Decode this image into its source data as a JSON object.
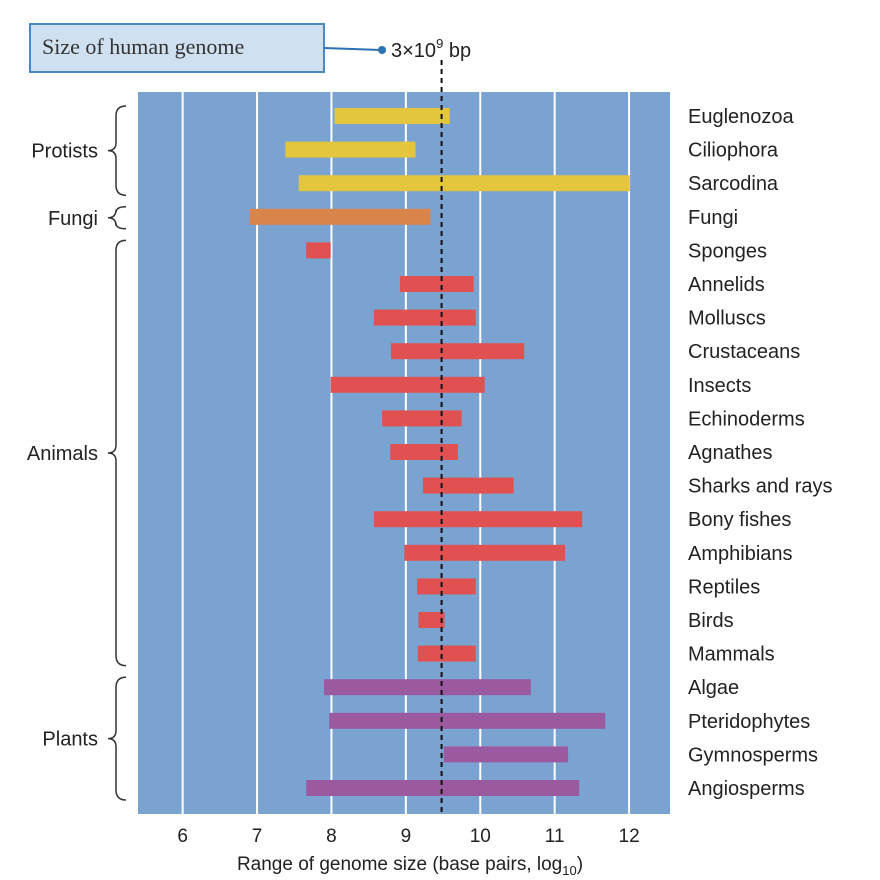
{
  "chart_data": {
    "type": "bar",
    "orientation": "horizontal-range",
    "xlabel": "Range of genome size (base pairs, log",
    "xlabel_subscript": "10",
    "xlabel_close": ")",
    "xlim": [
      5.4,
      12.55
    ],
    "xticks": [
      6,
      7,
      8,
      9,
      10,
      11,
      12
    ],
    "grid": true,
    "background_color": "#7aa3d2",
    "annotation": {
      "box_text": "Size of human genome",
      "value_text": "3×10",
      "value_exponent": "9",
      "value_unit": " bp",
      "x": 9.48
    },
    "groups": [
      {
        "name": "Protists",
        "color": "#e3c53e",
        "rows": [
          0,
          2
        ]
      },
      {
        "name": "Fungi",
        "color": "#d8844a",
        "rows": [
          3,
          3
        ]
      },
      {
        "name": "Animals",
        "color": "#e05252",
        "rows": [
          4,
          16
        ]
      },
      {
        "name": "Plants",
        "color": "#9b5aa0",
        "rows": [
          17,
          20
        ]
      }
    ],
    "categories": [
      "Euglenozoa",
      "Ciliophora",
      "Sarcodina",
      "Fungi",
      "Sponges",
      "Annelids",
      "Molluscs",
      "Crustaceans",
      "Insects",
      "Echinoderms",
      "Agnathes",
      "Sharks and rays",
      "Bony fishes",
      "Amphibians",
      "Reptiles",
      "Birds",
      "Mammals",
      "Algae",
      "Pteridophytes",
      "Gymnosperms",
      "Angiosperms"
    ],
    "ranges": [
      [
        8.04,
        9.59
      ],
      [
        7.38,
        9.13
      ],
      [
        7.56,
        12.01
      ],
      [
        6.9,
        9.33
      ],
      [
        7.66,
        7.99
      ],
      [
        8.92,
        9.91
      ],
      [
        8.57,
        9.94
      ],
      [
        8.8,
        10.59
      ],
      [
        7.99,
        10.06
      ],
      [
        8.68,
        9.75
      ],
      [
        8.79,
        9.7
      ],
      [
        9.23,
        10.45
      ],
      [
        8.57,
        11.37
      ],
      [
        8.98,
        11.14
      ],
      [
        9.15,
        9.94
      ],
      [
        9.17,
        9.52
      ],
      [
        9.16,
        9.94
      ],
      [
        7.9,
        10.68
      ],
      [
        7.97,
        11.68
      ],
      [
        9.51,
        11.18
      ],
      [
        7.66,
        11.33
      ]
    ]
  }
}
